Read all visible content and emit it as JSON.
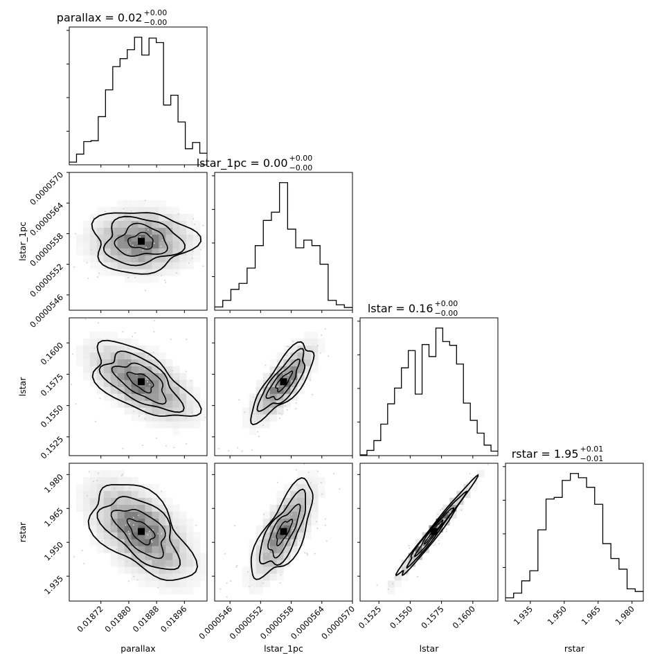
{
  "chart_data": {
    "type": "corner",
    "params": [
      "parallax",
      "lstar_1pc",
      "lstar",
      "rstar"
    ],
    "axis_labels": [
      "parallax",
      "lstar_1pc",
      "lstar",
      "rstar"
    ],
    "ranges": [
      [
        0.018629,
        0.019025
      ],
      [
        5.43e-05,
        5.7e-05
      ],
      [
        0.151,
        0.162
      ],
      [
        1.924,
        1.985
      ]
    ],
    "ticks": [
      [
        0.01872,
        0.0188,
        0.01888,
        0.01896
      ],
      [
        5.46e-05,
        5.52e-05,
        5.58e-05,
        5.64e-05,
        5.7e-05
      ],
      [
        0.1525,
        0.155,
        0.1575,
        0.16
      ],
      [
        1.935,
        1.95,
        1.965,
        1.98
      ]
    ],
    "tick_labels": [
      [
        "0.01872",
        "0.01880",
        "0.01888",
        "0.01896"
      ],
      [
        "0.0000546",
        "0.0000552",
        "0.0000558",
        "0.0000564",
        "0.0000570"
      ],
      [
        "0.1525",
        "0.1550",
        "0.1575",
        "0.1600"
      ],
      [
        "1.935",
        "1.950",
        "1.965",
        "1.980"
      ]
    ],
    "titles": [
      {
        "main": "parallax = 0.02",
        "sup": "+0.00",
        "sub": "−0.00"
      },
      {
        "main": "lstar_1pc = 0.00",
        "sup": "+0.00",
        "sub": "−0.00"
      },
      {
        "main": "lstar = 0.16",
        "sup": "+0.00",
        "sub": "−0.00"
      },
      {
        "main": "rstar = 1.95",
        "sup": "+0.01",
        "sub": "−0.01"
      }
    ],
    "histograms": [
      [
        0.3,
        1.2,
        2.6,
        2.7,
        5.4,
        8.4,
        11.0,
        11.9,
        12.9,
        14.3,
        12.3,
        14.2,
        13.7,
        6.7,
        7.8,
        4.8,
        1.8,
        2.5,
        1.3
      ],
      [
        0.6,
        1.8,
        3.8,
        4.9,
        7.7,
        11.8,
        16.4,
        17.9,
        23.3,
        14.8,
        11.4,
        12.8,
        11.8,
        8.4,
        1.8,
        1.0,
        0.5
      ],
      [
        0.1,
        0.7,
        2.0,
        4.2,
        6.9,
        9.0,
        11.7,
        14.0,
        8.2,
        14.8,
        13.2,
        17.0,
        15.2,
        14.7,
        12.2,
        7.0,
        4.7,
        3.0,
        1.4,
        0.6
      ],
      [
        0.6,
        1.5,
        3.8,
        5.7,
        13.4,
        19.2,
        19.5,
        22.7,
        24.0,
        23.2,
        21.4,
        18.2,
        10.8,
        8.0,
        6.0,
        2.3,
        1.8
      ]
    ],
    "density_shape": {
      "means": [
        0.018836,
        5.565e-05,
        0.1569,
        1.9548
      ],
      "sds": [
        7.2e-05,
        3e-07,
        0.0015,
        0.0106
      ]
    },
    "grid": false
  }
}
